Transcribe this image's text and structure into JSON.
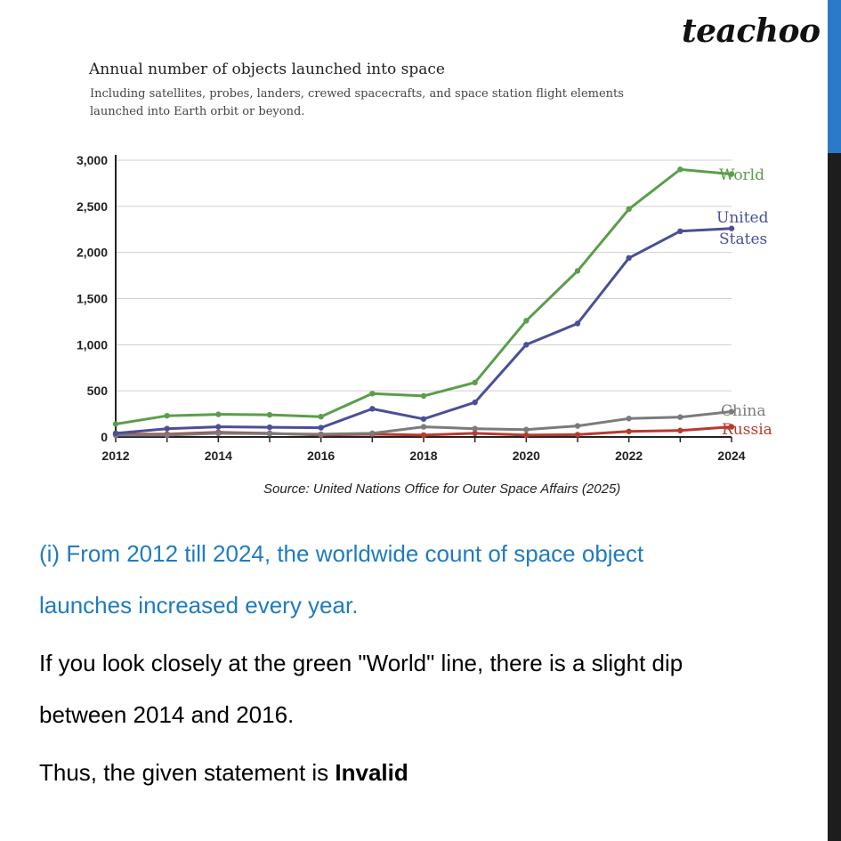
{
  "brand": "teachoo",
  "theme": {
    "accent": "#2b7ac9",
    "question_color": "#1f7bbf",
    "bar_color": "#1d1d1d"
  },
  "chart_data": {
    "type": "line",
    "title": "Annual number of objects launched into space",
    "subtitle": "Including satellites, probes, landers, crewed spacecrafts, and space station flight elements launched into Earth orbit or beyond.",
    "source": "Source: United Nations Office for Outer Space Affairs (2025)",
    "xlabel": "",
    "ylabel": "",
    "xlim": [
      2012,
      2024
    ],
    "ylim": [
      0,
      3000
    ],
    "x": [
      2012,
      2013,
      2014,
      2015,
      2016,
      2017,
      2018,
      2019,
      2020,
      2021,
      2022,
      2023,
      2024
    ],
    "x_ticks": [
      2012,
      2014,
      2016,
      2018,
      2020,
      2022,
      2024
    ],
    "y_ticks": [
      0,
      500,
      1000,
      1500,
      2000,
      2500,
      3000
    ],
    "y_tick_labels": [
      "0",
      "500",
      "1,000",
      "1,500",
      "2,000",
      "2,500",
      "3,000"
    ],
    "grid": true,
    "series": [
      {
        "name": "World",
        "color": "#5a9e4b",
        "label_lines": [
          "World"
        ],
        "values": [
          140,
          230,
          245,
          240,
          220,
          470,
          445,
          590,
          1260,
          1800,
          2470,
          2900,
          2850
        ]
      },
      {
        "name": "United States",
        "color": "#4a4f97",
        "label_lines": [
          "United",
          "States"
        ],
        "values": [
          40,
          90,
          110,
          105,
          100,
          305,
          195,
          375,
          1000,
          1230,
          1940,
          2230,
          2260
        ]
      },
      {
        "name": "China",
        "color": "#7b7b7b",
        "label_lines": [
          "China"
        ],
        "values": [
          20,
          20,
          40,
          35,
          30,
          40,
          110,
          90,
          80,
          120,
          200,
          215,
          275
        ]
      },
      {
        "name": "Russia",
        "color": "#b83a2e",
        "label_lines": [
          "Russia"
        ],
        "values": [
          30,
          30,
          50,
          40,
          20,
          30,
          20,
          40,
          20,
          25,
          60,
          70,
          110
        ]
      }
    ]
  },
  "text": {
    "question_line1": "(i) From 2012 till 2024, the worldwide count of space object",
    "question_line2": "launches increased every year.",
    "explanation_line1": "If you look closely at the green \"World\" line, there is a slight dip",
    "explanation_line2": "between 2014 and 2016.",
    "conclusion_prefix": "Thus, the given statement is ",
    "conclusion_verdict": "Invalid"
  }
}
